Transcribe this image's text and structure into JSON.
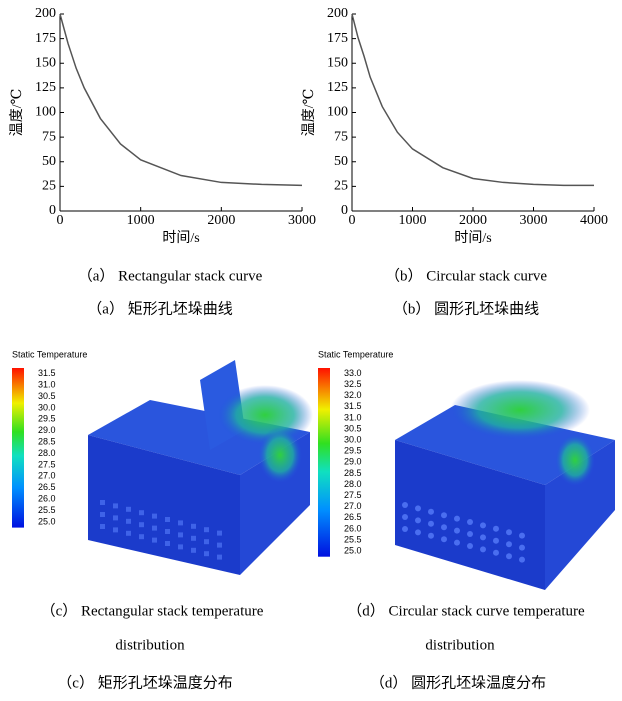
{
  "chart_data": [
    {
      "type": "line",
      "xlabel": "时间/s",
      "ylabel": "温度/℃",
      "x": [
        0,
        100,
        200,
        300,
        500,
        750,
        1000,
        1500,
        2000,
        2500,
        3000
      ],
      "values": [
        200,
        170,
        145,
        125,
        94,
        68,
        52,
        36,
        29,
        27,
        26
      ],
      "color": "#555555",
      "xlim": [
        0,
        3000
      ],
      "xticks": [
        0,
        1000,
        2000,
        3000
      ],
      "ylim": [
        0,
        200
      ],
      "yticks": [
        0,
        25,
        50,
        75,
        100,
        125,
        150,
        175,
        200
      ]
    },
    {
      "type": "line",
      "xlabel": "时间/s",
      "ylabel": "温度/℃",
      "x": [
        0,
        100,
        200,
        300,
        500,
        750,
        1000,
        1500,
        2000,
        2500,
        3000,
        3500,
        4000
      ],
      "values": [
        200,
        176,
        157,
        136,
        106,
        80,
        63,
        44,
        33,
        29,
        27,
        26,
        26
      ],
      "color": "#555555",
      "xlim": [
        0,
        4000
      ],
      "xticks": [
        0,
        1000,
        2000,
        3000,
        4000
      ],
      "ylim": [
        0,
        200
      ],
      "yticks": [
        0,
        25,
        50,
        75,
        100,
        125,
        150,
        175,
        200
      ]
    }
  ],
  "captions": [
    {
      "en": "（a） Rectangular stack curve",
      "zh": "（a） 矩形孔坯垛曲线"
    },
    {
      "en": "（b） Circular stack curve",
      "zh": "（b） 圆形孔坯垛曲线"
    },
    {
      "en": "（c） Rectangular stack  temperature",
      "en2": "distribution",
      "zh": "（c） 矩形孔坯垛温度分布"
    },
    {
      "en": "（d） Circular stack curve temperature",
      "en2": "distribution",
      "zh": "（d） 圆形孔坯垛温度分布"
    }
  ],
  "renderings": [
    {
      "legend_title": "Static Temperature",
      "legend_labels": [
        "31.5",
        "31.0",
        "30.5",
        "30.0",
        "29.5",
        "29.0",
        "28.5",
        "28.0",
        "27.5",
        "27.0",
        "26.5",
        "26.0",
        "25.5",
        "25.0"
      ]
    },
    {
      "legend_title": "Static Temperature",
      "legend_labels": [
        "33.0",
        "32.5",
        "32.0",
        "31.5",
        "31.0",
        "30.5",
        "30.0",
        "29.5",
        "29.0",
        "28.5",
        "28.0",
        "27.5",
        "27.0",
        "26.5",
        "26.0",
        "25.5",
        "25.0"
      ]
    }
  ]
}
